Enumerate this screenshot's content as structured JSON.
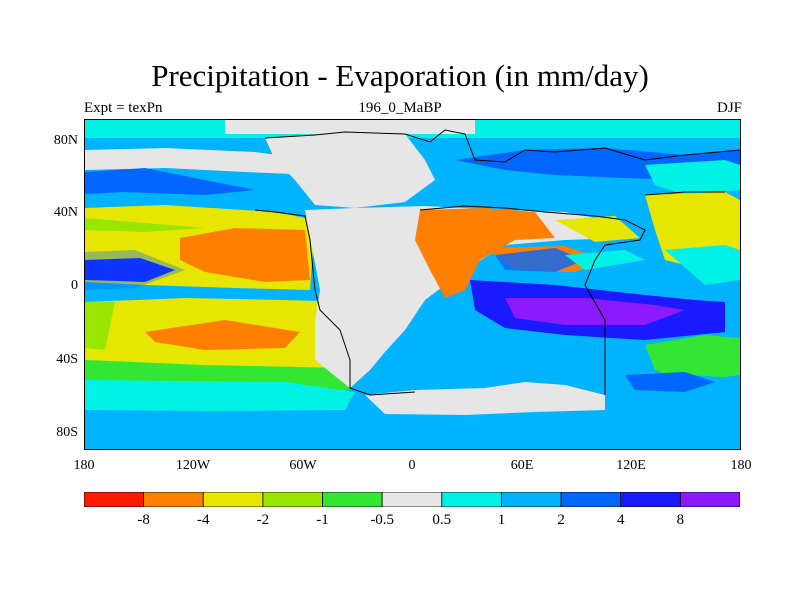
{
  "title": "Precipitation - Evaporation (in mm/day)",
  "left_label": "Expt = texPn",
  "center_label": "196_0_MaBP",
  "right_label": "DJF",
  "y_ticks": [
    "80N",
    "40N",
    "0",
    "40S",
    "80S"
  ],
  "x_ticks": [
    "180",
    "120W",
    "60W",
    "0",
    "60E",
    "120E",
    "180"
  ],
  "colorbar": {
    "colors": [
      "#ff1a00",
      "#ff8000",
      "#e6e600",
      "#99e600",
      "#33e633",
      "#e6e6e6",
      "#00f2e6",
      "#00b3ff",
      "#0066ff",
      "#1a1aff",
      "#8c1aff"
    ],
    "labels": [
      "-8",
      "-4",
      "-2",
      "-1",
      "-0.5",
      "0.5",
      "1",
      "2",
      "4",
      "8"
    ]
  },
  "colors": {
    "land": "#e6e6e6",
    "ocean_main": "#00b3ff",
    "ocean_light": "#00f2e6",
    "subtropical_dry": "#e6e600",
    "dry_core": "#ff8000",
    "moist_band": "#0066ff",
    "very_moist": "#1a1aff",
    "peak_moist": "#8c1aff"
  }
}
